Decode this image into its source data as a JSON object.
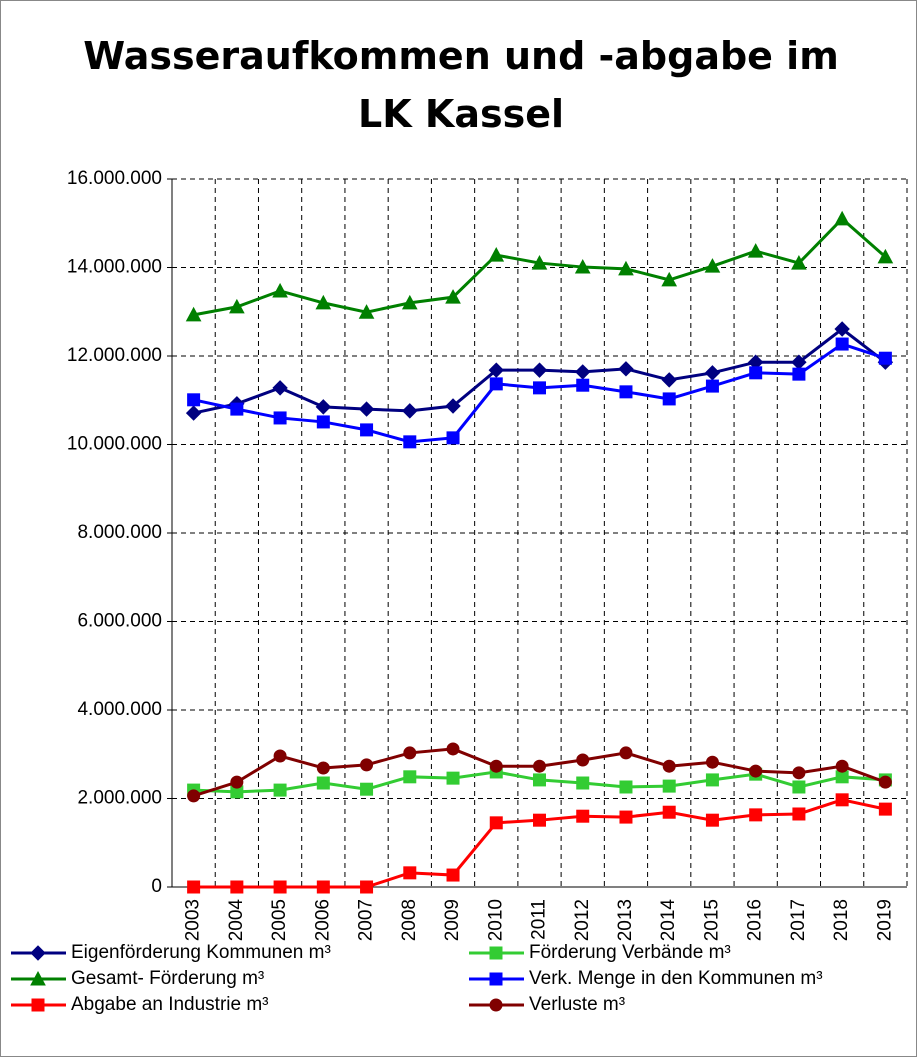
{
  "chart_data": {
    "type": "line",
    "title": "Wasseraufkommen und -abgabe im LK Kassel",
    "categories": [
      "2003",
      "2004",
      "2005",
      "2006",
      "2007",
      "2008",
      "2009",
      "2010",
      "2011",
      "2012",
      "2013",
      "2014",
      "2015",
      "2016",
      "2017",
      "2018",
      "2019"
    ],
    "ylim": [
      0,
      16000000
    ],
    "yticks": [
      0,
      {
        "value": 2000000,
        "label": "2.000.000"
      },
      {
        "value": 4000000,
        "label": "4.000.000"
      },
      {
        "value": 6000000,
        "label": "6.000.000"
      },
      {
        "value": 8000000,
        "label": "8.000.000"
      },
      {
        "value": 10000000,
        "label": "10.000.000"
      },
      {
        "value": 12000000,
        "label": "12.000.000"
      },
      {
        "value": 14000000,
        "label": "14.000.000"
      },
      {
        "value": 16000000,
        "label": "16.000.000"
      }
    ],
    "grid": true,
    "series": [
      {
        "name": "Eigenförderung Kommunen m³",
        "color": "#000080",
        "marker": "diamond",
        "values": [
          10710000,
          10920000,
          11280000,
          10850000,
          10800000,
          10760000,
          10870000,
          11680000,
          11680000,
          11640000,
          11710000,
          11460000,
          11620000,
          11860000,
          11860000,
          12610000,
          11860000
        ]
      },
      {
        "name": "Förderung Verbände m³",
        "color": "#33cc33",
        "marker": "square",
        "values": [
          2190000,
          2150000,
          2190000,
          2350000,
          2210000,
          2490000,
          2460000,
          2600000,
          2420000,
          2350000,
          2260000,
          2280000,
          2420000,
          2550000,
          2260000,
          2490000,
          2420000
        ]
      },
      {
        "name": "Gesamt- Förderung m³",
        "color": "#008000",
        "marker": "triangle",
        "values": [
          12930000,
          13110000,
          13470000,
          13200000,
          12990000,
          13200000,
          13330000,
          14280000,
          14100000,
          14010000,
          13970000,
          13720000,
          14030000,
          14370000,
          14100000,
          15100000,
          14240000
        ]
      },
      {
        "name": "Verk. Menge in den Kommunen m³",
        "color": "#0000ff",
        "marker": "square",
        "values": [
          11010000,
          10800000,
          10600000,
          10510000,
          10330000,
          10060000,
          10150000,
          11370000,
          11280000,
          11340000,
          11190000,
          11030000,
          11320000,
          11620000,
          11590000,
          12270000,
          11950000
        ]
      },
      {
        "name": "Abgabe an Industrie m³",
        "color": "#ff0000",
        "marker": "square",
        "values": [
          0,
          0,
          0,
          0,
          0,
          320000,
          270000,
          1450000,
          1510000,
          1600000,
          1580000,
          1690000,
          1510000,
          1630000,
          1650000,
          1970000,
          1760000
        ]
      },
      {
        "name": "Verluste m³",
        "color": "#800000",
        "marker": "circle",
        "values": [
          2060000,
          2370000,
          2960000,
          2690000,
          2760000,
          3030000,
          3120000,
          2730000,
          2730000,
          2870000,
          3030000,
          2730000,
          2820000,
          2620000,
          2580000,
          2730000,
          2370000
        ]
      }
    ]
  }
}
